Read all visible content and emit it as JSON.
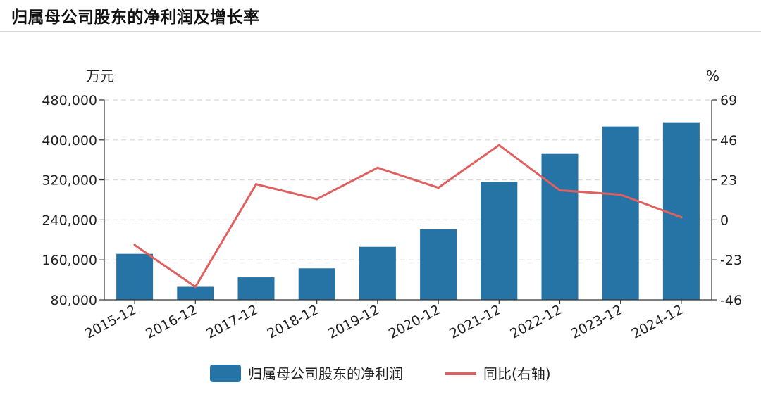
{
  "title": "归属母公司股东的净利润及增长率",
  "colors": {
    "bar": "#2574a5",
    "line": "#e06060",
    "grid": "#d8d8d8",
    "axis": "#333333"
  },
  "chart_data": {
    "type": "bar",
    "title": "归属母公司股东的净利润及增长率",
    "categories": [
      "2015-12",
      "2016-12",
      "2017-12",
      "2018-12",
      "2019-12",
      "2020-12",
      "2021-12",
      "2022-12",
      "2023-12",
      "2024-12"
    ],
    "left_axis": {
      "unit": "万元",
      "ylim": [
        80000,
        480000
      ],
      "ticks": [
        80000,
        160000,
        240000,
        320000,
        400000,
        480000
      ],
      "tick_labels": [
        "80,000",
        "160,000",
        "240,000",
        "320,000",
        "400,000",
        "480,000"
      ]
    },
    "right_axis": {
      "unit": "%",
      "ylim": [
        -46,
        69
      ],
      "ticks": [
        -46,
        -23,
        0,
        23,
        46,
        69
      ],
      "tick_labels": [
        "-46",
        "-23",
        "0",
        "23",
        "46",
        "69"
      ]
    },
    "series": [
      {
        "name": "归属母公司股东的净利润",
        "type": "bar",
        "axis": "left",
        "values": [
          172000,
          106000,
          125000,
          143000,
          186000,
          221000,
          316000,
          372000,
          427000,
          434000
        ]
      },
      {
        "name": "同比(右轴)",
        "type": "line",
        "axis": "right",
        "values": [
          -14.5,
          -38.5,
          20.5,
          12,
          30,
          18.5,
          43,
          17,
          14.5,
          1.5
        ]
      }
    ],
    "grid": true,
    "legend_position": "bottom-center"
  }
}
